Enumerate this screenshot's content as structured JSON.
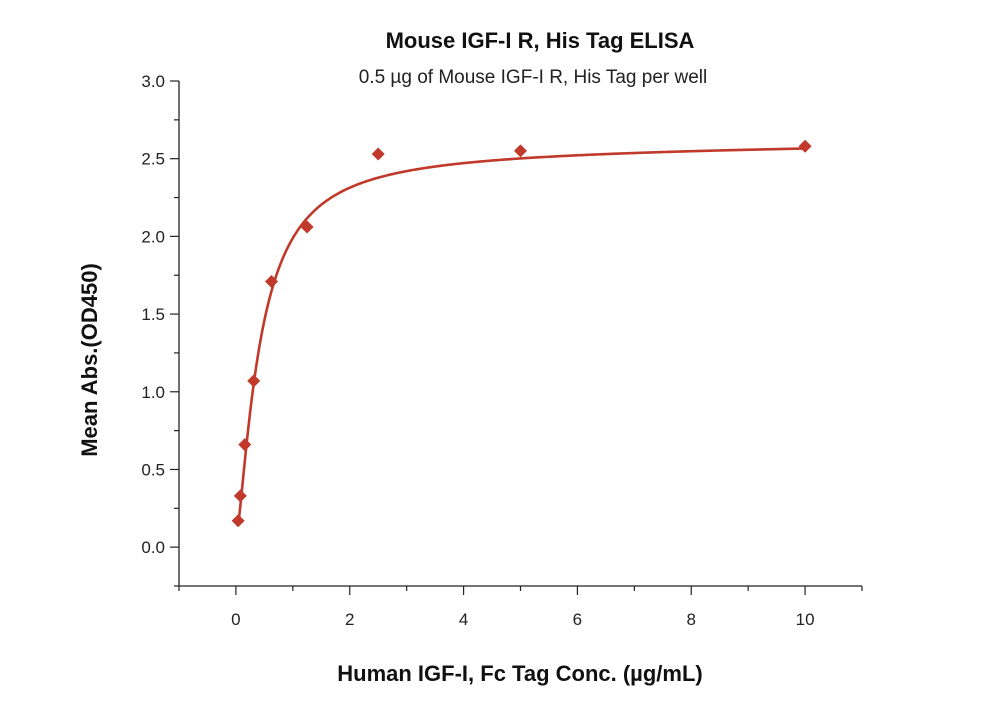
{
  "chart_data": {
    "type": "scatter",
    "title": "Mouse IGF-I R, His Tag ELISA",
    "subtitle": "0.5 µg of Mouse IGF-I R, His Tag per well",
    "xlabel": "Human IGF-I, Fc Tag Conc. (µg/mL)",
    "ylabel": "Mean Abs.(OD450)",
    "xlim": [
      -1,
      11
    ],
    "ylim": [
      -0.25,
      3.0
    ],
    "xticks": [
      0,
      2,
      4,
      6,
      8,
      10
    ],
    "xtick_labels": [
      "0",
      "2",
      "4",
      "6",
      "8",
      "10"
    ],
    "yticks": [
      0.0,
      0.5,
      1.0,
      1.5,
      2.0,
      2.5,
      3.0
    ],
    "ytick_labels": [
      "0.0",
      "0.5",
      "1.0",
      "1.5",
      "2.0",
      "2.5",
      "3.0"
    ],
    "grid": false,
    "color": "#c0392b",
    "series": [
      {
        "name": "Mean Abs.(OD450)",
        "x": [
          0.039,
          0.078,
          0.156,
          0.3125,
          0.625,
          1.25,
          2.5,
          5,
          10
        ],
        "y": [
          0.17,
          0.33,
          0.66,
          1.07,
          1.71,
          2.06,
          2.53,
          2.55,
          2.58
        ]
      }
    ],
    "fit": {
      "type": "4PL",
      "bottom": 0.05,
      "top": 2.56,
      "ec50": 0.42,
      "hill": 1.4,
      "slope": 0.0035
    }
  }
}
